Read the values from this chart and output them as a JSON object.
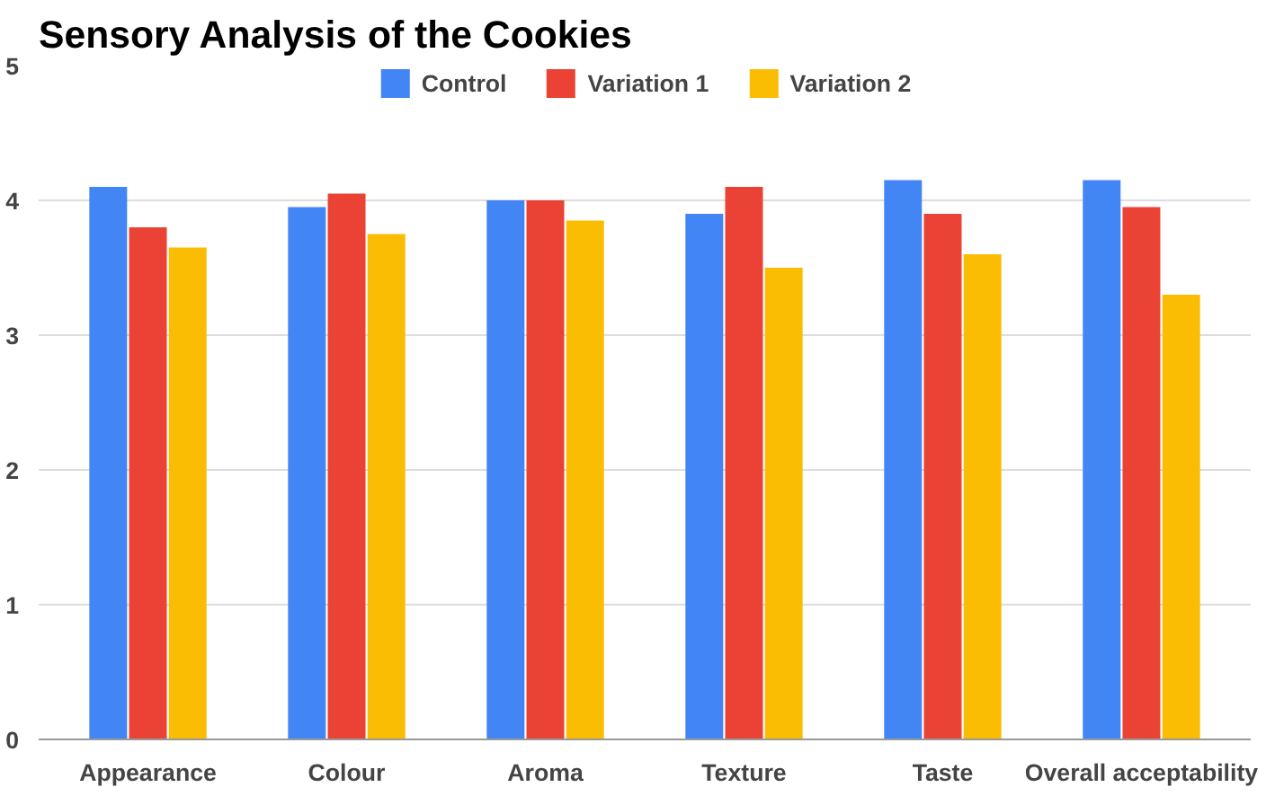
{
  "chart_data": {
    "type": "bar",
    "title": "Sensory Analysis of the Cookies",
    "categories": [
      "Appearance",
      "Colour",
      "Aroma",
      "Texture",
      "Taste",
      "Overall acceptability"
    ],
    "series": [
      {
        "name": "Control",
        "color": "#4285f4",
        "values": [
          4.1,
          3.95,
          4.0,
          3.9,
          4.15,
          4.15
        ]
      },
      {
        "name": "Variation 1",
        "color": "#ea4335",
        "values": [
          3.8,
          4.05,
          4.0,
          4.1,
          3.9,
          3.95
        ]
      },
      {
        "name": "Variation 2",
        "color": "#fbbc04",
        "values": [
          3.65,
          3.75,
          3.85,
          3.5,
          3.6,
          3.3
        ]
      }
    ],
    "ylim": [
      0,
      5
    ],
    "yticks": [
      0,
      1,
      2,
      3,
      4,
      5
    ],
    "grid": "y",
    "legend": "top"
  }
}
